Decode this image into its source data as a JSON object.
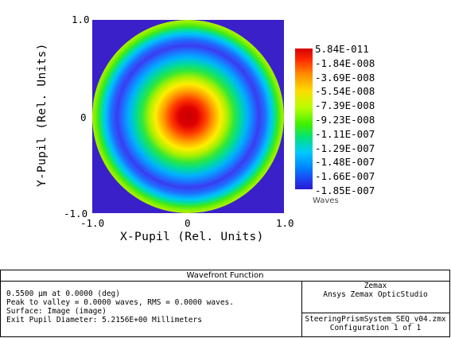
{
  "plot": {
    "y_tick_top": "1.0",
    "y_tick_mid": "0",
    "y_tick_bottom": "-1.0",
    "x_tick_left": "-1.0",
    "x_tick_mid": "0",
    "x_tick_right": "1.0",
    "x_axis_title": "X-Pupil (Rel. Units)",
    "y_axis_title": "Y-Pupil (Rel. Units)"
  },
  "colorbar": {
    "labels": [
      "5.84E-011",
      "-1.84E-008",
      "-3.69E-008",
      "-5.54E-008",
      "-7.39E-008",
      "-9.23E-008",
      "-1.11E-007",
      "-1.29E-007",
      "-1.48E-007",
      "-1.66E-007",
      "-1.85E-007"
    ],
    "units": "Waves"
  },
  "info": {
    "title": "Wavefront Function",
    "lines": [
      "0.5500 µm at 0.0000 (deg)",
      "Peak to valley = 0.0000 waves, RMS = 0.0000 waves.",
      "Surface: Image (image)",
      "Exit Pupil Diameter: 5.2156E+00 Millimeters"
    ],
    "brand_name": "Zemax",
    "brand_product": "Ansys Zemax OpticStudio",
    "file_name": "SteeringPrismSystem_SEQ_v04.zmx",
    "configuration": "Configuration 1 of 1"
  },
  "colors": {
    "background_outside_pupil": "#3a20c8",
    "peak": "#d40000",
    "valley": "#2a1ad0"
  }
}
